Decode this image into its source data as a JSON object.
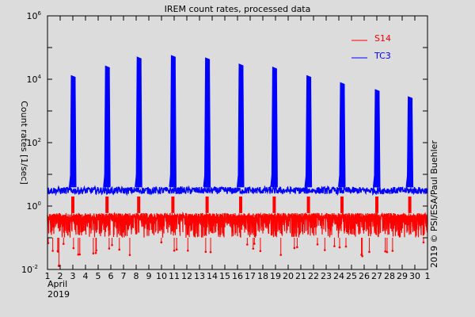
{
  "chart_data": {
    "type": "line",
    "title": "IREM count rates, processed data",
    "ylabel": "Count rates [1/sec]",
    "xlabel_month": "April",
    "xlabel_year": "2019",
    "yscale": "log",
    "ylim": [
      0.01,
      1000000
    ],
    "ytick_labels": [
      {
        "base": "10",
        "exp": "6",
        "value": 1000000
      },
      {
        "base": "10",
        "exp": "4",
        "value": 10000
      },
      {
        "base": "10",
        "exp": "2",
        "value": 100
      },
      {
        "base": "10",
        "exp": "0",
        "value": 1
      },
      {
        "base": "10",
        "exp": "-2",
        "value": 0.01
      }
    ],
    "xlim": [
      1,
      31
    ],
    "xtick_labels": [
      "1",
      "2",
      "3",
      "4",
      "5",
      "6",
      "7",
      "8",
      "9",
      "10",
      "11",
      "12",
      "13",
      "14",
      "15",
      "16",
      "17",
      "18",
      "19",
      "20",
      "21",
      "22",
      "23",
      "24",
      "25",
      "26",
      "27",
      "28",
      "29",
      "30",
      "1"
    ],
    "credit": "2019 © PSI/ESA/Paul Buehler",
    "legend_position": "top-right",
    "series": [
      {
        "name": "S14",
        "color": "#ff0000",
        "baseline_range": [
          0.1,
          0.6
        ],
        "spike_value": 2.0,
        "min_dips": [
          [
            1.9,
            0.013
          ]
        ]
      },
      {
        "name": "TC3",
        "color": "#0000ff",
        "baseline_range": [
          2.4,
          4.0
        ],
        "peaks": [
          {
            "day": 3.0,
            "value": 13000
          },
          {
            "day": 5.7,
            "value": 26000
          },
          {
            "day": 8.2,
            "value": 50000
          },
          {
            "day": 10.9,
            "value": 56000
          },
          {
            "day": 13.6,
            "value": 47000
          },
          {
            "day": 16.25,
            "value": 30000
          },
          {
            "day": 18.9,
            "value": 24000
          },
          {
            "day": 21.6,
            "value": 13000
          },
          {
            "day": 24.25,
            "value": 7800
          },
          {
            "day": 27.0,
            "value": 4700
          },
          {
            "day": 29.6,
            "value": 2800
          }
        ]
      }
    ]
  }
}
